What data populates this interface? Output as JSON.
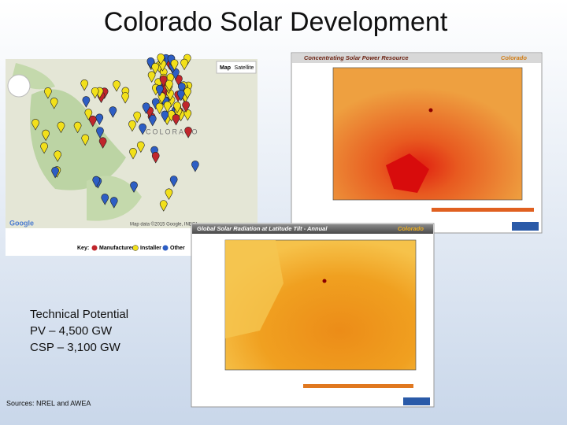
{
  "title": "Colorado Solar Development",
  "map": {
    "buttons": [
      "Map",
      "Satellite"
    ],
    "place_label": "COLORADO",
    "logo": "Google",
    "attribution": "Map data ©2015 Google, INEGI",
    "key": {
      "label": "Key:",
      "items": [
        "Manufacturer",
        "Installer",
        "Other"
      ]
    }
  },
  "csp_map": {
    "title": "Concentrating Solar Power Resource",
    "state": "Colorado"
  },
  "ghi_map": {
    "title": "Global Solar Radiation at Latitude Tilt - Annual",
    "state": "Colorado"
  },
  "potential": {
    "heading": "Technical Potential",
    "lines": [
      "PV – 4,500 GW",
      "CSP – 3,100 GW"
    ]
  },
  "sources": "Sources: NREL and AWEA"
}
